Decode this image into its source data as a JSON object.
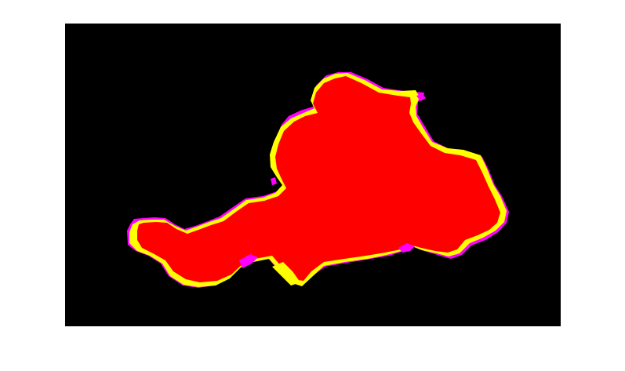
{
  "image": {
    "background_color": "#000000",
    "page_color": "#ffffff",
    "legend": {
      "overlap_region": "#ff0000",
      "only_in_first_mask": "#ffff00",
      "only_in_second_mask": "#ff00ff"
    }
  }
}
